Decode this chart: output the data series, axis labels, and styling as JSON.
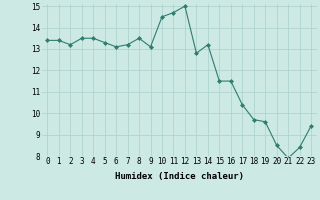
{
  "x": [
    0,
    1,
    2,
    3,
    4,
    5,
    6,
    7,
    8,
    9,
    10,
    11,
    12,
    13,
    14,
    15,
    16,
    17,
    18,
    19,
    20,
    21,
    22,
    23
  ],
  "y": [
    13.4,
    13.4,
    13.2,
    13.5,
    13.5,
    13.3,
    13.1,
    13.2,
    13.5,
    13.1,
    14.5,
    14.7,
    15.0,
    12.8,
    13.2,
    11.5,
    11.5,
    10.4,
    9.7,
    9.6,
    8.5,
    7.9,
    8.4,
    9.4
  ],
  "line_color": "#2e7d6e",
  "marker": "D",
  "marker_size": 2.0,
  "bg_color": "#cce9e4",
  "grid_color": "#aad0ca",
  "xlabel": "Humidex (Indice chaleur)",
  "ylabel": "",
  "ylim": [
    8,
    15
  ],
  "xlim_min": -0.5,
  "xlim_max": 23.5,
  "yticks": [
    8,
    9,
    10,
    11,
    12,
    13,
    14,
    15
  ],
  "xticks": [
    0,
    1,
    2,
    3,
    4,
    5,
    6,
    7,
    8,
    9,
    10,
    11,
    12,
    13,
    14,
    15,
    16,
    17,
    18,
    19,
    20,
    21,
    22,
    23
  ],
  "label_fontsize": 6.5,
  "tick_fontsize": 5.5
}
